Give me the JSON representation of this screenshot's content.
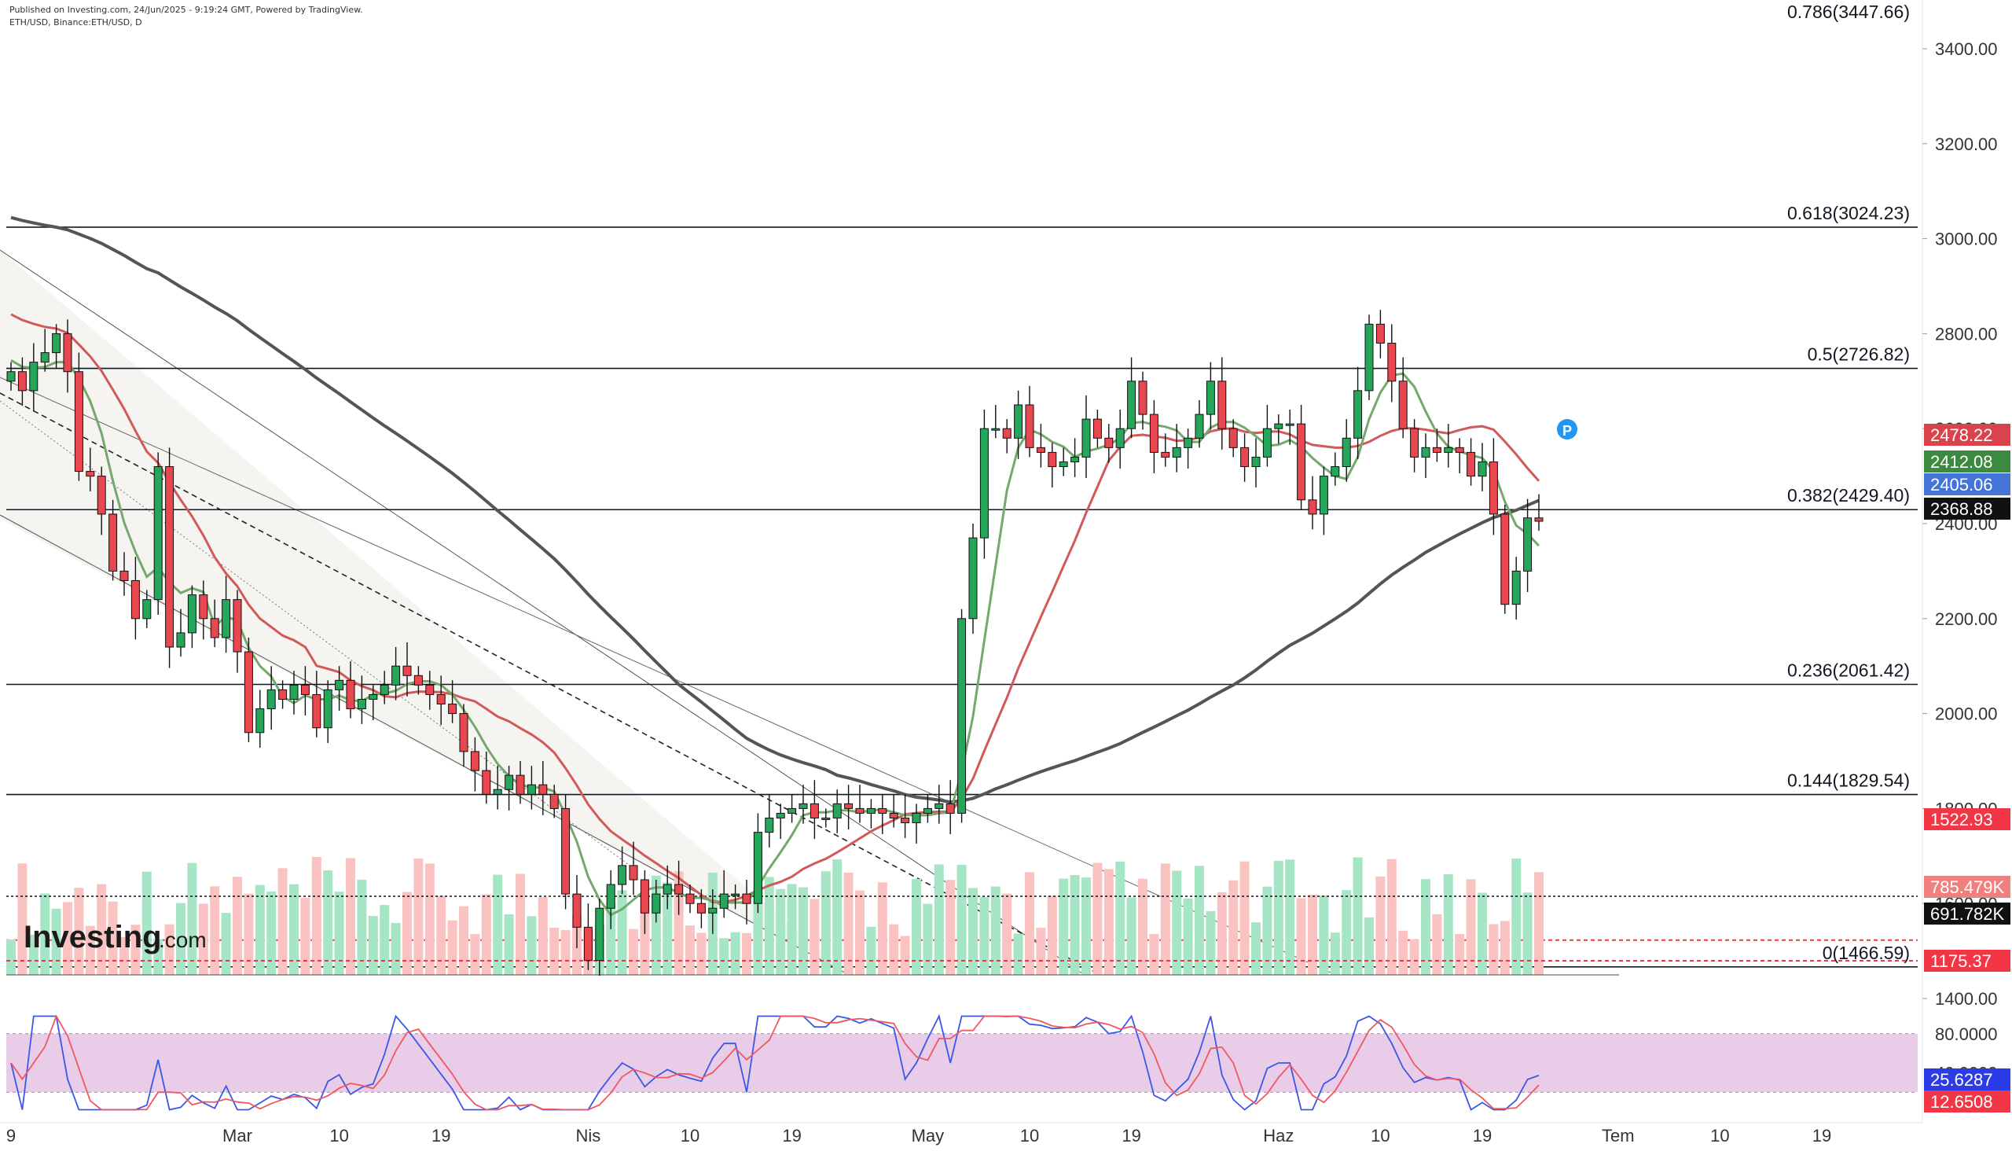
{
  "header": {
    "published": "Published on Investing.com, 24/Jun/2025 - 9:19:24 GMT, Powered by TradingView.",
    "symbol": "ETH/USD, Binance:ETH/USD, D"
  },
  "logo": {
    "brand": "Investing",
    "suffix": ".com"
  },
  "chart_data": {
    "type": "candlestick",
    "price_axis": {
      "min": 1400,
      "max": 3400,
      "ticks": [
        1400,
        1600,
        1800,
        2000,
        2200,
        2400,
        2600,
        2800,
        3000,
        3200,
        3400
      ],
      "tick_labels": [
        "1400.00",
        "1600.00",
        "1800.00",
        "2000.00",
        "2200.00",
        "2400.00",
        "2600.00",
        "2800.00",
        "3000.00",
        "3200.00",
        "3400.00"
      ]
    },
    "x_axis": {
      "start_date": "2025-02-09",
      "labels": [
        {
          "text": "9",
          "date": "2025-02-09"
        },
        {
          "text": "Mar",
          "date": "2025-03-01"
        },
        {
          "text": "10",
          "date": "2025-03-10"
        },
        {
          "text": "19",
          "date": "2025-03-19"
        },
        {
          "text": "Nis",
          "date": "2025-04-01"
        },
        {
          "text": "10",
          "date": "2025-04-10"
        },
        {
          "text": "19",
          "date": "2025-04-19"
        },
        {
          "text": "May",
          "date": "2025-05-01"
        },
        {
          "text": "10",
          "date": "2025-05-10"
        },
        {
          "text": "19",
          "date": "2025-05-19"
        },
        {
          "text": "Haz",
          "date": "2025-06-01"
        },
        {
          "text": "10",
          "date": "2025-06-10"
        },
        {
          "text": "19",
          "date": "2025-06-19"
        },
        {
          "text": "Tem",
          "date": "2025-07-01"
        },
        {
          "text": "10",
          "date": "2025-07-10"
        },
        {
          "text": "19",
          "date": "2025-07-19"
        }
      ]
    },
    "close_series": [
      2720,
      2680,
      2740,
      2760,
      2800,
      2720,
      2510,
      2500,
      2420,
      2300,
      2280,
      2200,
      2240,
      2520,
      2140,
      2170,
      2250,
      2200,
      2160,
      2240,
      2130,
      1960,
      2010,
      2050,
      2030,
      2060,
      2040,
      1970,
      2050,
      2070,
      2010,
      2030,
      2040,
      2060,
      2100,
      2080,
      2060,
      2040,
      2020,
      2000,
      1920,
      1880,
      1830,
      1840,
      1870,
      1830,
      1850,
      1830,
      1800,
      1620,
      1550,
      1480,
      1590,
      1640,
      1680,
      1650,
      1580,
      1620,
      1640,
      1620,
      1600,
      1580,
      1590,
      1620,
      1620,
      1600,
      1750,
      1780,
      1790,
      1800,
      1810,
      1780,
      1780,
      1810,
      1800,
      1790,
      1800,
      1790,
      1780,
      1770,
      1790,
      1800,
      1810,
      1790,
      2200,
      2370,
      2600,
      2600,
      2580,
      2650,
      2560,
      2550,
      2520,
      2530,
      2540,
      2620,
      2580,
      2560,
      2600,
      2700,
      2630,
      2550,
      2540,
      2560,
      2580,
      2630,
      2700,
      2600,
      2560,
      2520,
      2540,
      2600,
      2610,
      2610,
      2450,
      2420,
      2500,
      2520,
      2580,
      2680,
      2820,
      2780,
      2700,
      2600,
      2540,
      2560,
      2550,
      2560,
      2550,
      2500,
      2530,
      2420,
      2230,
      2300,
      2412,
      2405
    ],
    "candles_drawn_from_close_series": true,
    "moving_averages": [
      {
        "name": "MA fast",
        "color": "#74a86c",
        "last": 2412.08
      },
      {
        "name": "MA medium",
        "color": "#d05a5a",
        "last": 2478.22
      },
      {
        "name": "MA slow",
        "color": "#555555",
        "last": 2368.88
      }
    ],
    "fibonacci_levels": [
      {
        "ratio": "0.786",
        "value": 3447.66,
        "label": "0.786(3447.66)"
      },
      {
        "ratio": "0.618",
        "value": 3024.23,
        "label": "0.618(3024.23)"
      },
      {
        "ratio": "0.5",
        "value": 2726.82,
        "label": "0.5(2726.82)"
      },
      {
        "ratio": "0.382",
        "value": 2429.4,
        "label": "0.382(2429.40)"
      },
      {
        "ratio": "0.236",
        "value": 2061.42,
        "label": "0.236(2061.42)"
      },
      {
        "ratio": "0.144",
        "value": 1829.54,
        "label": "0.144(1829.54)"
      },
      {
        "ratio": "0",
        "value": 1466.59,
        "label": "0(1466.59)"
      }
    ],
    "support_lines": [
      1522.93
    ],
    "price_tags": [
      {
        "text": "2478.22",
        "value": 2478.22,
        "color": "#d9434b"
      },
      {
        "text": "2412.08",
        "value": 2412.08,
        "color": "#3b8a3f"
      },
      {
        "text": "2405.06",
        "value": 2405.06,
        "color": "#4474d8"
      },
      {
        "text": "2368.88",
        "value": 2368.88,
        "color": "#111111"
      },
      {
        "text": "1522.93",
        "value": 1522.93,
        "color": "#f23645"
      }
    ],
    "volume": {
      "tags": [
        {
          "text": "785.479K",
          "color": "#f08080"
        },
        {
          "text": "691.782K",
          "color": "#111111"
        },
        {
          "text": "1175.37",
          "color": "#f23645"
        }
      ]
    },
    "oscillator": {
      "ticks": [
        80,
        40
      ],
      "tick_labels": [
        "80.0000",
        "40.0000"
      ],
      "values": [
        {
          "text": "25.6287",
          "color": "#2c3be8"
        },
        {
          "text": "12.6508",
          "color": "#f23645"
        }
      ]
    },
    "marker": {
      "text": "P",
      "color": "#2196f3"
    }
  }
}
